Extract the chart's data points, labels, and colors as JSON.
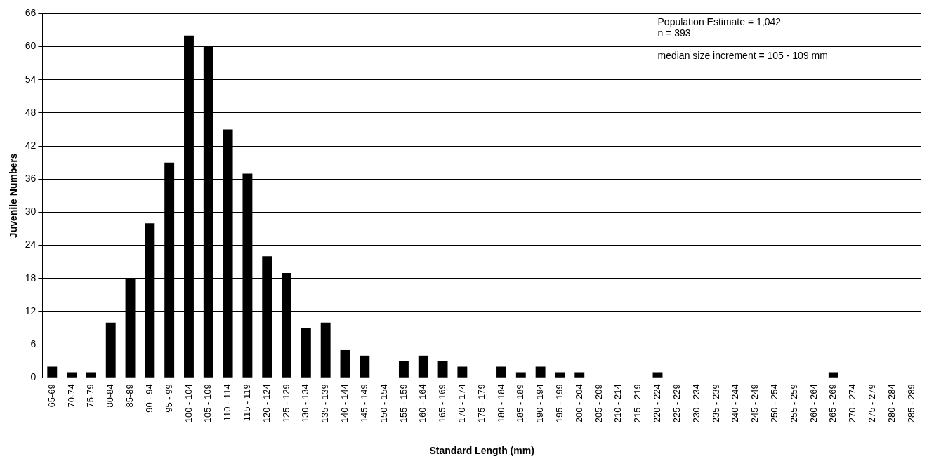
{
  "chart_data": {
    "type": "bar",
    "xlabel": "Standard Length (mm)",
    "ylabel": "Juvenile Numbers",
    "categories": [
      "65-69",
      "70-74",
      "75-79",
      "80-84",
      "85-89",
      "90 - 94",
      "95 - 99",
      "100 - 104",
      "105 - 109",
      "110 - 114",
      "115 - 119",
      "120 - 124",
      "125 - 129",
      "130 - 134",
      "135 - 139",
      "140 - 144",
      "145 - 149",
      "150 - 154",
      "155 - 159",
      "160 - 164",
      "165 - 169",
      "170 - 174",
      "175 - 179",
      "180 - 184",
      "185 - 189",
      "190 - 194",
      "195 - 199",
      "200 - 204",
      "205 - 209",
      "210 - 214",
      "215 - 219",
      "220 - 224",
      "225 - 229",
      "230 - 234",
      "235 - 239",
      "240 - 244",
      "245 - 249",
      "250 - 254",
      "255 - 259",
      "260 - 264",
      "265 - 269",
      "270 - 274",
      "275 - 279",
      "280 - 284",
      "285 - 289"
    ],
    "values": [
      2,
      1,
      1,
      10,
      18,
      28,
      39,
      62,
      60,
      45,
      37,
      22,
      19,
      9,
      10,
      5,
      4,
      0,
      3,
      4,
      3,
      2,
      0,
      2,
      1,
      2,
      1,
      1,
      0,
      0,
      0,
      1,
      0,
      0,
      0,
      0,
      0,
      0,
      0,
      0,
      1,
      0,
      0,
      0,
      0
    ],
    "color": "#000000",
    "ylim": [
      0,
      66
    ],
    "yticks": [
      0,
      6,
      12,
      18,
      24,
      30,
      36,
      42,
      48,
      54,
      60,
      66
    ],
    "grid": "y",
    "legend": false,
    "annotations": [
      "Population Estimate = 1,042",
      "n = 393",
      "median size increment = 105 - 109 mm"
    ]
  }
}
